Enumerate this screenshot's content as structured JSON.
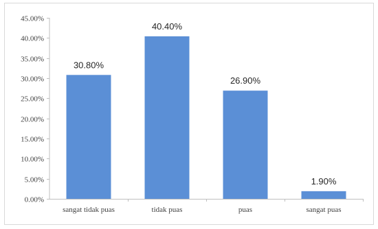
{
  "chart_data": {
    "type": "bar",
    "categories": [
      "sangat tidak puas",
      "tidak puas",
      "puas",
      "sangat puas"
    ],
    "values": [
      30.8,
      40.4,
      26.9,
      1.9
    ],
    "data_labels": [
      "30.80%",
      "40.40%",
      "26.90%",
      "1.90%"
    ],
    "ylim": [
      0,
      45
    ],
    "y_ticks": [
      0,
      5,
      10,
      15,
      20,
      25,
      30,
      35,
      40,
      45
    ],
    "y_tick_labels": [
      "0.00%",
      "5.00%",
      "10.00%",
      "15.00%",
      "20.00%",
      "25.00%",
      "30.00%",
      "35.00%",
      "40.00%",
      "45.00%"
    ],
    "title": "",
    "xlabel": "",
    "ylabel": "",
    "grid": false,
    "legend": "none",
    "bar_color": "#5b8fd6",
    "axis_color": "#bfbfbf",
    "frame_color": "#d9d9d9"
  }
}
